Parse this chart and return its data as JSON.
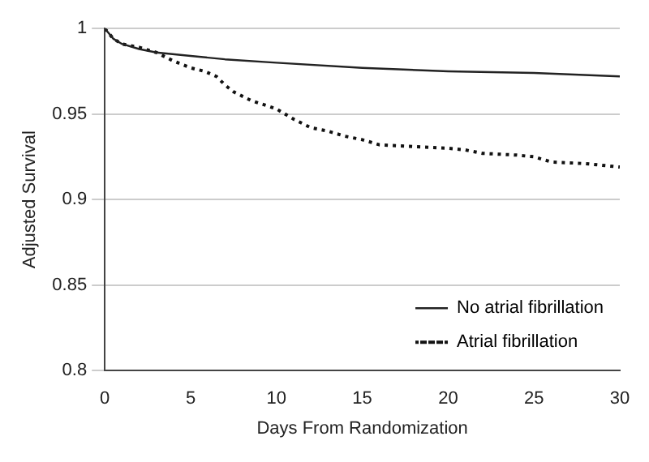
{
  "chart_data": {
    "type": "line",
    "xlabel": "Days From Randomization",
    "ylabel": "Adjusted Survival",
    "xlim": [
      0,
      30
    ],
    "xticks": [
      0,
      5,
      10,
      15,
      20,
      25,
      30
    ],
    "ylim": [
      0.8,
      1
    ],
    "yticks": [
      0.8,
      0.85,
      0.9,
      0.95,
      1
    ],
    "grid": "y",
    "legend": "bottom right",
    "marker": "none",
    "series": [
      {
        "name": "No atrial fibrillation",
        "color": "#222222",
        "line_style": "solid",
        "x": [
          0,
          0.5,
          1,
          2,
          3,
          5,
          7,
          10,
          15,
          20,
          25,
          30
        ],
        "values": [
          1,
          0.994,
          0.991,
          0.988,
          0.986,
          0.984,
          0.982,
          0.98,
          0.977,
          0.975,
          0.974,
          0.972
        ]
      },
      {
        "name": "Atrial fibrillation",
        "color": "#111111",
        "line_style": "dotted",
        "x": [
          0,
          0.5,
          1,
          2,
          3,
          4,
          5,
          5.8,
          6.5,
          7,
          7.5,
          8.5,
          10,
          11,
          12,
          13,
          14,
          15,
          16,
          18,
          20,
          21,
          22,
          24,
          25,
          26,
          28,
          30
        ],
        "values": [
          1,
          0.994,
          0.991,
          0.989,
          0.986,
          0.981,
          0.977,
          0.975,
          0.972,
          0.967,
          0.963,
          0.958,
          0.953,
          0.947,
          0.942,
          0.94,
          0.937,
          0.935,
          0.932,
          0.931,
          0.93,
          0.929,
          0.927,
          0.926,
          0.925,
          0.922,
          0.921,
          0.919
        ]
      }
    ]
  }
}
